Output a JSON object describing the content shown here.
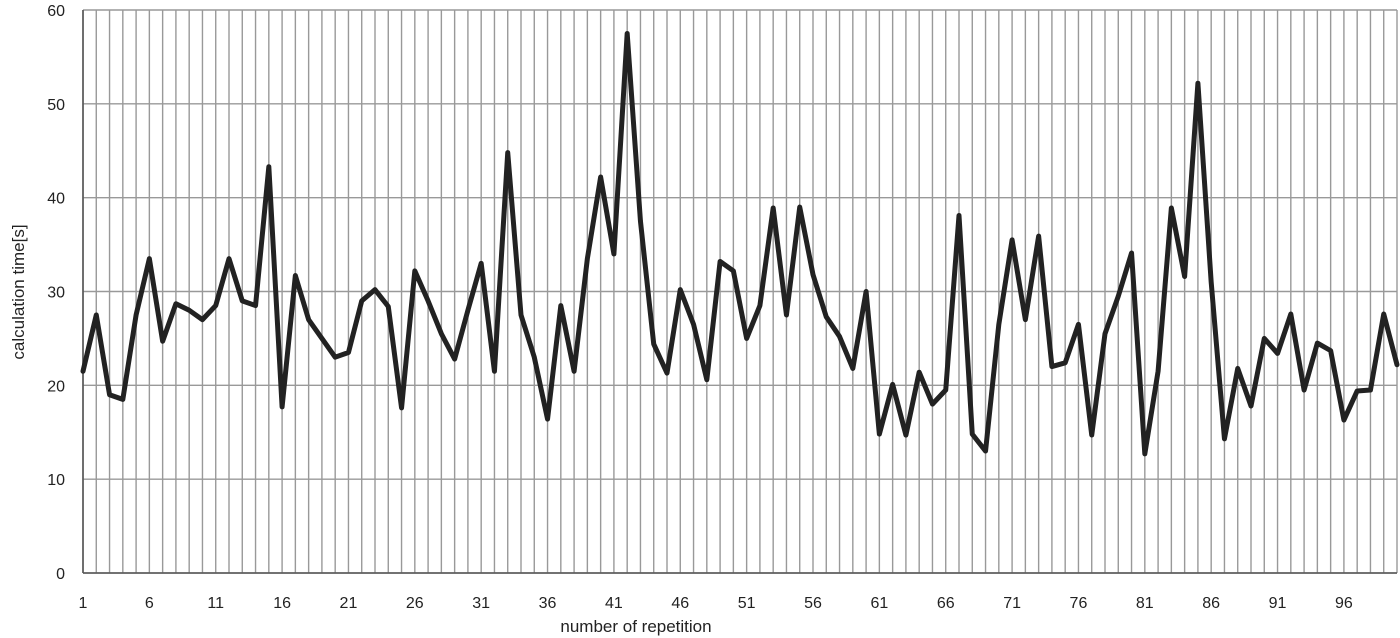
{
  "chart_data": {
    "type": "line",
    "title": "",
    "xlabel": "number of repetition",
    "ylabel": "calculation time[s]",
    "ylim": [
      0,
      60
    ],
    "yticks": [
      0,
      10,
      20,
      30,
      40,
      50,
      60
    ],
    "xlim": [
      1,
      100
    ],
    "xticks": [
      1,
      6,
      11,
      16,
      21,
      26,
      31,
      36,
      41,
      46,
      51,
      56,
      61,
      66,
      71,
      76,
      81,
      86,
      91,
      96
    ],
    "grid": true,
    "legend": "none",
    "line_color": "#222222",
    "grid_color": "#999999",
    "series": [
      {
        "values": [
          21.5,
          27.5,
          19,
          18.5,
          27.5,
          33.5,
          24.7,
          28.7,
          28,
          27,
          28.5,
          33.5,
          29,
          28.5,
          43.3,
          17.7,
          31.7,
          27,
          25,
          23,
          23.5,
          29,
          30.2,
          28.4,
          17.6,
          32.2,
          29,
          25.5,
          22.8,
          28,
          33,
          21.5,
          44.8,
          27.5,
          23,
          16.4,
          28.5,
          21.5,
          33.5,
          42.2,
          34,
          57.5,
          37.5,
          24.4,
          21.3,
          30.2,
          26.5,
          20.6,
          33.2,
          32.2,
          25,
          28.5,
          38.9,
          27.5,
          39,
          31.8,
          27.3,
          25.2,
          21.8,
          30,
          14.8,
          20.1,
          14.7,
          21.4,
          18,
          19.5,
          38.1,
          14.8,
          13,
          26.5,
          35.5,
          27,
          35.9,
          22,
          22.4,
          26.5,
          14.7,
          25.5,
          29.5,
          34.1,
          12.7,
          21.5,
          38.9,
          31.6,
          52.2,
          31,
          14.3,
          21.8,
          17.8,
          25,
          23.4,
          27.6,
          19.5,
          24.5,
          23.7,
          16.3,
          19.4,
          19.5,
          27.6,
          22.2
        ]
      }
    ]
  }
}
